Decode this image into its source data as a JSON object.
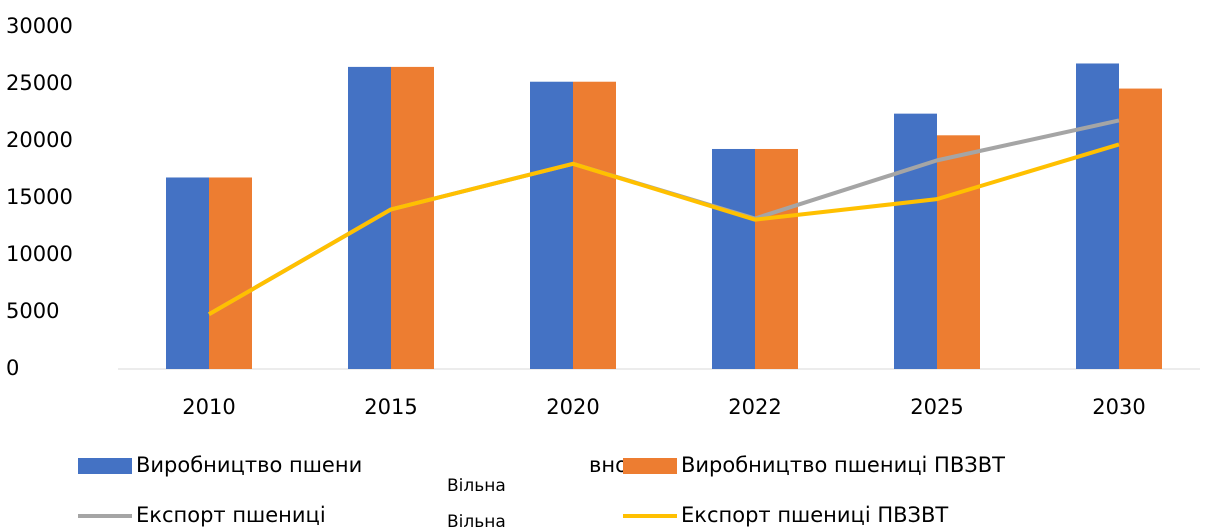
{
  "chart_data": {
    "type": "bar-line",
    "categories": [
      "2010",
      "2015",
      "2020",
      "2022",
      "2025",
      "2030"
    ],
    "ylim": [
      0,
      30000
    ],
    "yticks": [
      0,
      5000,
      10000,
      15000,
      20000,
      25000,
      30000
    ],
    "series": [
      {
        "name": "Виробництво пшени",
        "kind": "bar",
        "color": "#4472c4",
        "values": [
          16800,
          26500,
          25200,
          19300,
          22400,
          26800
        ]
      },
      {
        "name": "Виробництво пшениці ПВЗВТ",
        "kind": "bar",
        "color": "#ed7d31",
        "values": [
          16800,
          26500,
          25200,
          19300,
          20500,
          24600
        ]
      },
      {
        "name": "Експорт пшениці",
        "kind": "line",
        "color": "#a5a5a5",
        "values": [
          4800,
          14000,
          18000,
          13200,
          18300,
          21800
        ]
      },
      {
        "name": "Експорт пшениці ПВЗВТ",
        "kind": "line",
        "color": "#ffc000",
        "values": [
          4800,
          14000,
          18000,
          13100,
          14900,
          19700
        ]
      }
    ],
    "annotations": [
      "вно",
      "Вільна",
      "Вільна"
    ]
  }
}
